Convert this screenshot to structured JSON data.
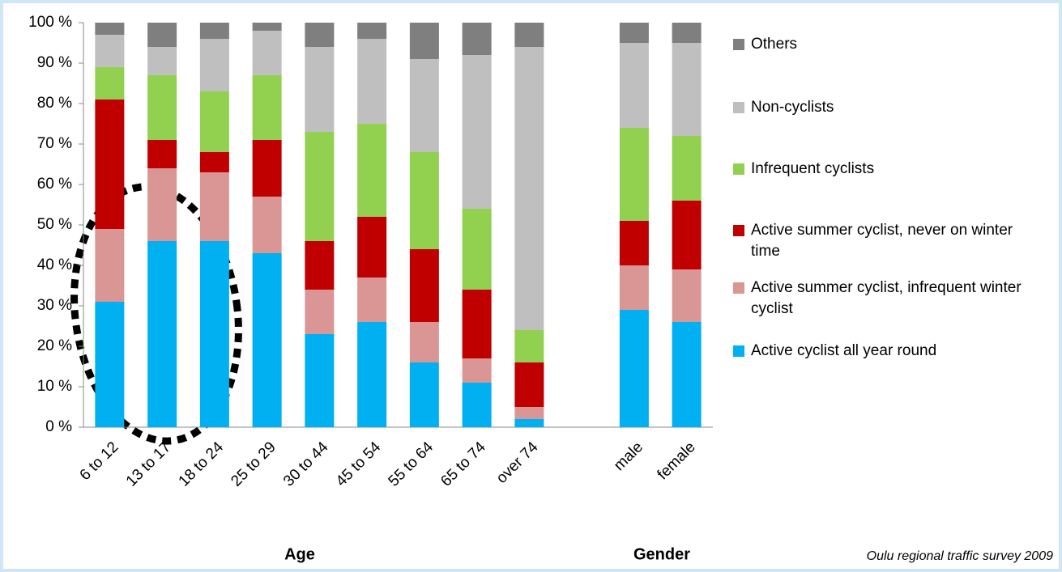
{
  "chart_data": {
    "type": "stacked_bar",
    "categories": [
      "6 to 12",
      "13 to 17",
      "18 to 24",
      "25 to 29",
      "30 to 44",
      "45 to 54",
      "55 to 64",
      "65 to 74",
      "over 74",
      null,
      "male",
      "female"
    ],
    "series": [
      {
        "name": "Active cyclist all year round",
        "color": "#00b0f0",
        "values": [
          31,
          46,
          46,
          43,
          23,
          26,
          16,
          11,
          2,
          null,
          29,
          26
        ]
      },
      {
        "name": "Active summer cyclist, infrequent winter cyclist",
        "color": "#d99694",
        "values": [
          18,
          18,
          17,
          14,
          11,
          11,
          10,
          6,
          3,
          null,
          11,
          13
        ]
      },
      {
        "name": "Active summer cyclist, never on winter time",
        "color": "#c00000",
        "values": [
          32,
          7,
          5,
          14,
          12,
          15,
          18,
          17,
          11,
          null,
          11,
          17
        ]
      },
      {
        "name": "Infrequent cyclists",
        "color": "#92d050",
        "values": [
          8,
          16,
          15,
          16,
          27,
          23,
          24,
          20,
          8,
          null,
          23,
          16
        ]
      },
      {
        "name": "Non-cyclists",
        "color": "#bfbfbf",
        "values": [
          8,
          7,
          13,
          11,
          21,
          21,
          23,
          38,
          70,
          null,
          21,
          23
        ]
      },
      {
        "name": "Others",
        "color": "#7f7f7f",
        "values": [
          3,
          6,
          4,
          2,
          6,
          4,
          9,
          8,
          6,
          null,
          5,
          5
        ]
      }
    ],
    "ylim": [
      0,
      100
    ],
    "yticks": [
      {
        "value": 0,
        "label": "0 %"
      },
      {
        "value": 10,
        "label": "10 %"
      },
      {
        "value": 20,
        "label": "20 %"
      },
      {
        "value": 30,
        "label": "30 %"
      },
      {
        "value": 40,
        "label": "40 %"
      },
      {
        "value": 50,
        "label": "50 %"
      },
      {
        "value": 60,
        "label": "60 %"
      },
      {
        "value": 70,
        "label": "70 %"
      },
      {
        "value": 80,
        "label": "80 %"
      },
      {
        "value": 90,
        "label": "90 %"
      },
      {
        "value": 100,
        "label": "100 %"
      }
    ],
    "grid": false,
    "group_labels": [
      "Age",
      "Gender"
    ],
    "source": "Oulu regional traffic survey 2009"
  }
}
